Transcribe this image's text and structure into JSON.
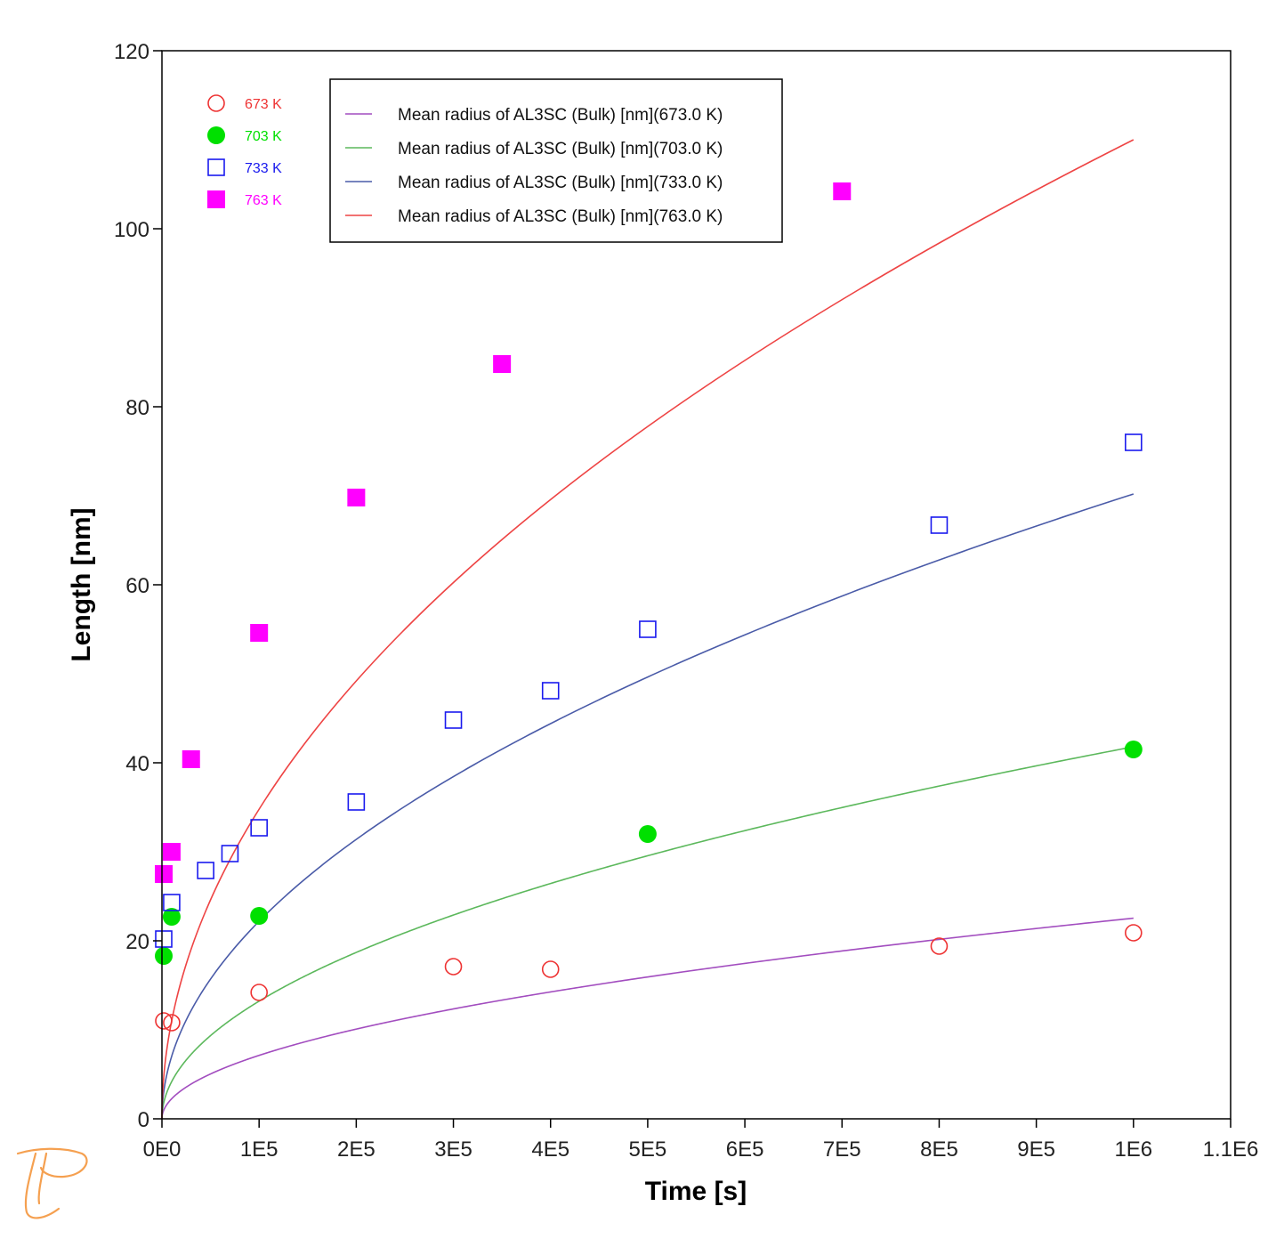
{
  "chart_data": {
    "type": "scatter",
    "xlabel": "Time [s]",
    "ylabel": "Length [nm]",
    "xlim": [
      0,
      1100000
    ],
    "ylim": [
      0,
      120
    ],
    "xticks": [
      0,
      100000,
      200000,
      300000,
      400000,
      500000,
      600000,
      700000,
      800000,
      900000,
      1000000,
      1100000
    ],
    "xtick_labels": [
      "0E0",
      "1E5",
      "2E5",
      "3E5",
      "4E5",
      "5E5",
      "6E5",
      "7E5",
      "8E5",
      "9E5",
      "1E6",
      "1.1E6"
    ],
    "yticks": [
      0,
      20,
      40,
      60,
      80,
      100,
      120
    ],
    "ytick_labels": [
      "0",
      "20",
      "40",
      "60",
      "80",
      "100",
      "120"
    ],
    "grid": false,
    "legend_position": "top",
    "curves": [
      {
        "name": "Mean radius of AL3SC (Bulk) [nm](673.0 K)",
        "color": "#a24dbf",
        "model": "power",
        "a": 0.02254,
        "n": 0.5,
        "x_end": 1000000
      },
      {
        "name": "Mean radius of AL3SC (Bulk) [nm](703.0 K)",
        "color": "#5cb85c",
        "model": "power",
        "a": 0.0418,
        "n": 0.5,
        "x_end": 1000000
      },
      {
        "name": "Mean radius of AL3SC (Bulk) [nm](733.0 K)",
        "color": "#4a5ba8",
        "model": "power",
        "a": 0.0702,
        "n": 0.5,
        "x_end": 1000000
      },
      {
        "name": "Mean radius of AL3SC (Bulk) [nm](763.0 K)",
        "color": "#ee4444",
        "model": "power",
        "a": 0.11,
        "n": 0.5,
        "x_end": 1000000
      }
    ],
    "series": [
      {
        "name": "673 K",
        "color": "#ee3333",
        "marker": "open-circle",
        "points": [
          [
            0,
            11
          ],
          [
            10000,
            10.8
          ],
          [
            100000,
            14.2
          ],
          [
            300000,
            17.1
          ],
          [
            400000,
            16.8
          ],
          [
            800000,
            19.4
          ],
          [
            1000000,
            20.9
          ]
        ]
      },
      {
        "name": "703 K",
        "color": "#00e000",
        "marker": "filled-circle",
        "points": [
          [
            0,
            18.3
          ],
          [
            10000,
            22.7
          ],
          [
            100000,
            22.8
          ],
          [
            500000,
            32
          ],
          [
            1000000,
            41.5
          ]
        ]
      },
      {
        "name": "733 K",
        "color": "#1a1aee",
        "marker": "open-square",
        "points": [
          [
            0,
            20.2
          ],
          [
            10000,
            24.3
          ],
          [
            45000,
            27.9
          ],
          [
            70000,
            29.8
          ],
          [
            100000,
            32.7
          ],
          [
            200000,
            35.6
          ],
          [
            300000,
            44.8
          ],
          [
            400000,
            48.1
          ],
          [
            500000,
            55
          ],
          [
            800000,
            66.7
          ],
          [
            1000000,
            76
          ]
        ]
      },
      {
        "name": "763 K",
        "color": "#ff00ff",
        "marker": "filled-square",
        "points": [
          [
            0,
            27.5
          ],
          [
            10000,
            30
          ],
          [
            30000,
            40.4
          ],
          [
            100000,
            54.6
          ],
          [
            200000,
            69.8
          ],
          [
            350000,
            84.8
          ],
          [
            700000,
            104.2
          ]
        ]
      }
    ]
  },
  "logo": {
    "name": "Thermo-Calc logo",
    "color": "#f5a050"
  }
}
